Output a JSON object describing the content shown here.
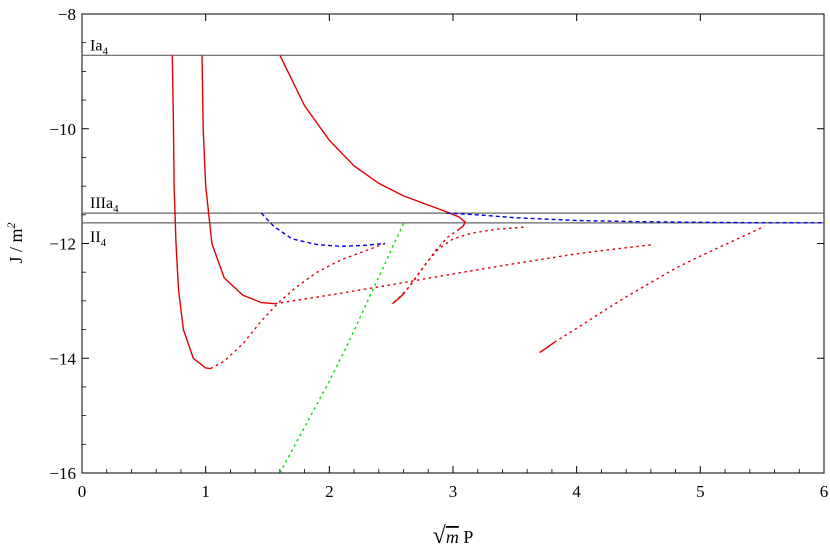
{
  "chart_data": {
    "type": "line",
    "title": "",
    "xlabel_prefix": "√",
    "xlabel_var": "m",
    "xlabel_suffix": " P",
    "ylabel": "J / m",
    "ylabel_sup": "2",
    "xlim": [
      0,
      6
    ],
    "ylim": [
      -16,
      -8
    ],
    "grid": false,
    "x_ticks": [
      0,
      1,
      2,
      3,
      4,
      5,
      6
    ],
    "y_ticks": [
      -8,
      -10,
      -12,
      -14,
      -16
    ],
    "colors": {
      "red": "#e00000",
      "blue": "#0000dd",
      "green": "#00dd00",
      "ref": "#666666",
      "axis": "#000000"
    },
    "reference_lines": [
      {
        "base": "Ia",
        "sub": "4",
        "y": -8.72
      },
      {
        "base": "IIIa",
        "sub": "4",
        "y": -11.47
      },
      {
        "base": "II",
        "sub": "4",
        "y": -11.64
      }
    ],
    "series": [
      {
        "color": "red",
        "style": "solid",
        "points": [
          [
            0.73,
            -8.72
          ],
          [
            0.74,
            -10
          ],
          [
            0.745,
            -11
          ],
          [
            0.76,
            -12
          ],
          [
            0.78,
            -12.8
          ],
          [
            0.82,
            -13.5
          ],
          [
            0.9,
            -14.0
          ],
          [
            1.0,
            -14.17
          ],
          [
            1.04,
            -14.18
          ]
        ]
      },
      {
        "color": "red",
        "style": "dotted",
        "points": [
          [
            1.04,
            -14.18
          ],
          [
            1.15,
            -14.05
          ],
          [
            1.3,
            -13.75
          ],
          [
            1.45,
            -13.35
          ],
          [
            1.58,
            -13.05
          ],
          [
            1.72,
            -12.78
          ],
          [
            1.9,
            -12.5
          ],
          [
            2.1,
            -12.28
          ],
          [
            2.3,
            -12.12
          ],
          [
            2.45,
            -12.0
          ]
        ]
      },
      {
        "color": "red",
        "style": "solid",
        "points": [
          [
            0.97,
            -8.72
          ],
          [
            0.98,
            -10
          ],
          [
            1.0,
            -11
          ],
          [
            1.05,
            -12
          ],
          [
            1.15,
            -12.6
          ],
          [
            1.3,
            -12.9
          ],
          [
            1.45,
            -13.03
          ],
          [
            1.56,
            -13.05
          ]
        ]
      },
      {
        "color": "red",
        "style": "dotted",
        "points": [
          [
            1.56,
            -13.05
          ],
          [
            2.0,
            -12.9
          ],
          [
            2.5,
            -12.72
          ],
          [
            3.0,
            -12.53
          ],
          [
            3.5,
            -12.35
          ],
          [
            4.0,
            -12.18
          ],
          [
            4.3,
            -12.1
          ],
          [
            4.62,
            -12.02
          ]
        ]
      },
      {
        "color": "red",
        "style": "solid",
        "points": [
          [
            1.6,
            -8.72
          ],
          [
            1.8,
            -9.6
          ],
          [
            2.0,
            -10.2
          ],
          [
            2.2,
            -10.65
          ],
          [
            2.4,
            -10.95
          ],
          [
            2.6,
            -11.17
          ],
          [
            2.8,
            -11.33
          ],
          [
            2.95,
            -11.45
          ],
          [
            3.05,
            -11.54
          ],
          [
            3.1,
            -11.63
          ],
          [
            3.08,
            -11.7
          ],
          [
            3.05,
            -11.75
          ]
        ]
      },
      {
        "color": "red",
        "style": "dotted",
        "points": [
          [
            3.05,
            -11.75
          ],
          [
            2.95,
            -11.9
          ],
          [
            2.85,
            -12.15
          ],
          [
            2.75,
            -12.45
          ],
          [
            2.65,
            -12.75
          ],
          [
            2.55,
            -12.98
          ],
          [
            2.51,
            -13.05
          ]
        ]
      },
      {
        "color": "red",
        "style": "solid",
        "points": [
          [
            2.51,
            -13.05
          ],
          [
            2.55,
            -12.98
          ],
          [
            2.6,
            -12.88
          ]
        ]
      },
      {
        "color": "red",
        "style": "dotted",
        "points": [
          [
            2.6,
            -12.88
          ],
          [
            2.68,
            -12.65
          ],
          [
            2.78,
            -12.35
          ],
          [
            2.88,
            -12.1
          ],
          [
            3.0,
            -11.92
          ],
          [
            3.15,
            -11.82
          ],
          [
            3.35,
            -11.75
          ],
          [
            3.6,
            -11.71
          ]
        ]
      },
      {
        "color": "red",
        "style": "solid",
        "points": [
          [
            3.7,
            -13.9
          ],
          [
            3.75,
            -13.83
          ],
          [
            3.82,
            -13.72
          ]
        ]
      },
      {
        "color": "red",
        "style": "dotted",
        "points": [
          [
            3.82,
            -13.72
          ],
          [
            4.0,
            -13.48
          ],
          [
            4.2,
            -13.2
          ],
          [
            4.4,
            -12.93
          ],
          [
            4.6,
            -12.68
          ],
          [
            4.8,
            -12.43
          ],
          [
            5.0,
            -12.22
          ],
          [
            5.2,
            -12.02
          ],
          [
            5.4,
            -11.82
          ],
          [
            5.52,
            -11.7
          ]
        ]
      },
      {
        "color": "blue",
        "style": "dashed",
        "points": [
          [
            1.45,
            -11.47
          ],
          [
            1.55,
            -11.7
          ],
          [
            1.7,
            -11.92
          ],
          [
            1.9,
            -12.02
          ],
          [
            2.1,
            -12.05
          ],
          [
            2.3,
            -12.03
          ],
          [
            2.45,
            -12.0
          ]
        ]
      },
      {
        "color": "blue",
        "style": "dashed",
        "points": [
          [
            2.95,
            -11.47
          ],
          [
            3.2,
            -11.5
          ],
          [
            3.5,
            -11.55
          ],
          [
            4.0,
            -11.6
          ],
          [
            4.5,
            -11.62
          ],
          [
            5.0,
            -11.63
          ],
          [
            5.5,
            -11.64
          ],
          [
            6.0,
            -11.64
          ]
        ]
      },
      {
        "color": "green",
        "style": "dotted",
        "points": [
          [
            1.6,
            -16.0
          ],
          [
            1.8,
            -15.2
          ],
          [
            2.0,
            -14.4
          ],
          [
            2.15,
            -13.75
          ],
          [
            2.3,
            -13.05
          ],
          [
            2.45,
            -12.35
          ],
          [
            2.6,
            -11.65
          ]
        ]
      }
    ]
  }
}
